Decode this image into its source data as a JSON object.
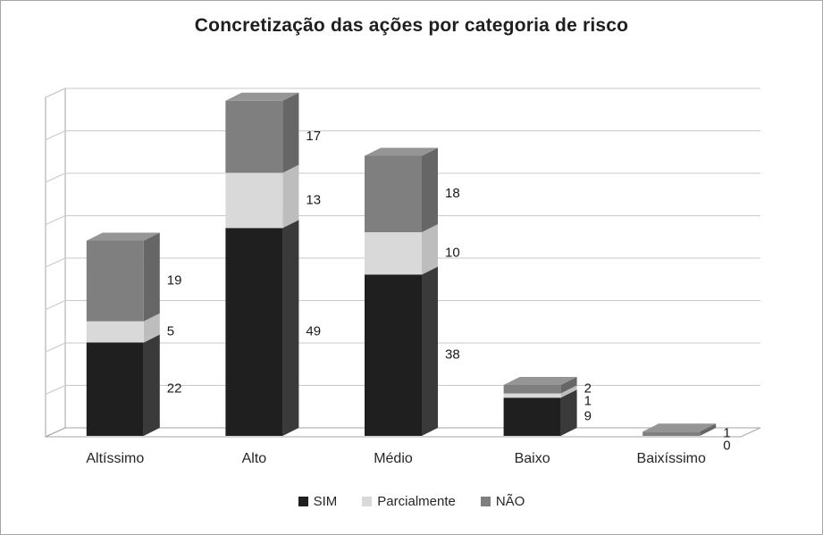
{
  "chart_data": {
    "type": "bar",
    "stacked": true,
    "style": "3d-stacked-column",
    "title": "Concretização das ações por categoria de risco",
    "categories": [
      "Altíssimo",
      "Alto",
      "Médio",
      "Baixo",
      "Baixíssimo"
    ],
    "series": [
      {
        "name": "SIM",
        "values": [
          22,
          49,
          38,
          9,
          0
        ],
        "color": "#1f1f1f",
        "color_side": "#3a3a3a",
        "color_top": "#4d4d4d"
      },
      {
        "name": "Parcialmente",
        "values": [
          5,
          13,
          10,
          1,
          0
        ],
        "color": "#d9d9d9",
        "color_side": "#bdbdbd",
        "color_top": "#e8e8e8"
      },
      {
        "name": "NÃO",
        "values": [
          19,
          17,
          18,
          2,
          1
        ],
        "color": "#7f7f7f",
        "color_side": "#666666",
        "color_top": "#959595"
      }
    ],
    "totals": [
      46,
      79,
      66,
      12,
      1
    ],
    "ylim": [
      0,
      80
    ],
    "grid_step": 10,
    "grid": true,
    "y_tick_labels_visible": false,
    "data_labels": true,
    "legend_position": "bottom"
  }
}
